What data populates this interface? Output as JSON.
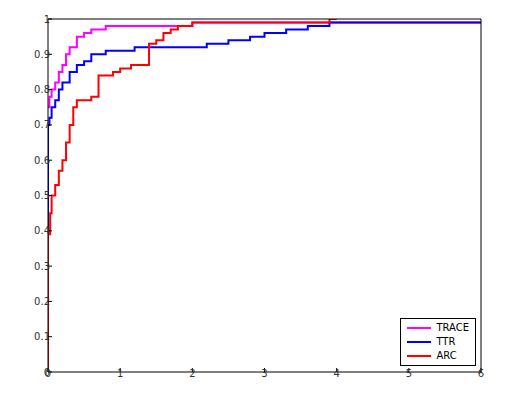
{
  "chart_data": {
    "type": "line",
    "xlim": [
      0,
      6
    ],
    "xticks": [
      0,
      1,
      2,
      3,
      4,
      5,
      6
    ],
    "ylim": [
      0,
      1
    ],
    "yticks": [
      0,
      0.1,
      0.2,
      0.3,
      0.4,
      0.5,
      0.6,
      0.7,
      0.8,
      0.9,
      1
    ],
    "grid": false,
    "legend": "lower right",
    "series": [
      {
        "name": "TRACE",
        "color": "#ff00ff",
        "x": [
          0,
          0.02,
          0.05,
          0.1,
          0.15,
          0.2,
          0.25,
          0.3,
          0.4,
          0.5,
          0.6,
          0.8,
          2.0,
          6
        ],
        "values": [
          0.75,
          0.78,
          0.8,
          0.82,
          0.85,
          0.87,
          0.9,
          0.92,
          0.95,
          0.96,
          0.97,
          0.98,
          0.99,
          0.99
        ]
      },
      {
        "name": "TTR",
        "color": "#0000ff",
        "x": [
          0,
          0,
          0.02,
          0.05,
          0.1,
          0.15,
          0.2,
          0.3,
          0.4,
          0.5,
          0.6,
          0.8,
          1.2,
          2.2,
          2.5,
          2.8,
          3.0,
          3.3,
          3.6,
          3.9,
          6
        ],
        "values": [
          0.39,
          0.7,
          0.72,
          0.75,
          0.77,
          0.8,
          0.82,
          0.85,
          0.87,
          0.88,
          0.9,
          0.91,
          0.92,
          0.93,
          0.94,
          0.95,
          0.96,
          0.97,
          0.98,
          0.99,
          0.99
        ]
      },
      {
        "name": "ARC",
        "color": "#ff0000",
        "x": [
          0,
          0,
          0.03,
          0.05,
          0.1,
          0.15,
          0.2,
          0.25,
          0.3,
          0.35,
          0.4,
          0.6,
          0.7,
          0.9,
          1.0,
          1.15,
          1.4,
          1.5,
          1.6,
          1.7,
          1.8,
          2.0,
          3.9,
          4.0
        ],
        "values": [
          0,
          0.39,
          0.45,
          0.5,
          0.53,
          0.57,
          0.6,
          0.65,
          0.7,
          0.75,
          0.77,
          0.78,
          0.84,
          0.85,
          0.86,
          0.87,
          0.93,
          0.94,
          0.96,
          0.97,
          0.98,
          0.99,
          1.0,
          1.0
        ]
      }
    ]
  }
}
